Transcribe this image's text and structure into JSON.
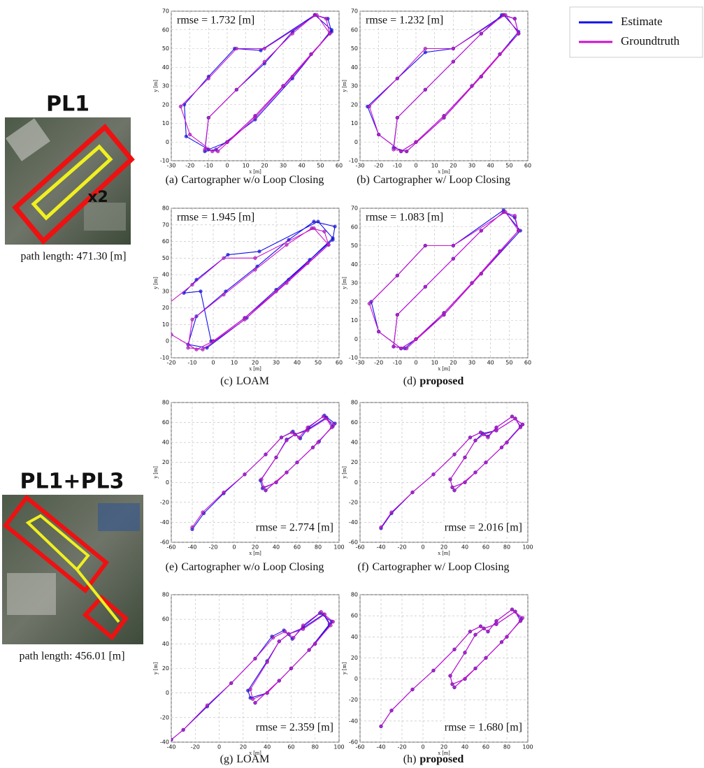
{
  "legend": [
    {
      "name": "Estimate",
      "color": "#1010ee"
    },
    {
      "name": "Groundtruth",
      "color": "#cc11cc"
    }
  ],
  "scenes": [
    {
      "title": "PL1",
      "badge": "x2",
      "note": "path length: 471.30 [m]"
    },
    {
      "title": "PL1+PL3",
      "note": "path length: 456.01 [m]"
    }
  ],
  "chart_data": [
    {
      "type": "line",
      "label": "(a)",
      "caption": "Cartographer w/o Loop Closing",
      "caption_bold": false,
      "annotation": "rmse = 1.732 [m]",
      "annotation_corner": "upper left",
      "xlabel": "x [m]",
      "ylabel": "y [m]",
      "grid": true,
      "xlim": [
        -30,
        60
      ],
      "xticks": [
        -30,
        -20,
        -10,
        0,
        10,
        20,
        30,
        40,
        50,
        60
      ],
      "ylim": [
        -10,
        70
      ],
      "yticks": [
        -10,
        0,
        10,
        20,
        30,
        40,
        50,
        60,
        70
      ],
      "series": [
        {
          "x": [
            0,
            15,
            30,
            45,
            56,
            54,
            47,
            35,
            20,
            5,
            -10,
            -12,
            -6,
            15,
            35,
            56,
            47,
            18,
            4,
            -10,
            -23,
            -22,
            -10,
            0
          ],
          "values": [
            0,
            14,
            30,
            47,
            59,
            66,
            68,
            59,
            42,
            28,
            13,
            -5,
            -4,
            12,
            34,
            60,
            68,
            49,
            50,
            35,
            20,
            3,
            -4,
            0
          ]
        },
        {
          "x": [
            0,
            15,
            30,
            45,
            55,
            53,
            47,
            35,
            20,
            5,
            -10,
            -12,
            -5,
            15,
            35,
            55,
            48,
            20,
            5,
            -10,
            -25,
            -20,
            -8,
            0
          ],
          "values": [
            0,
            14,
            30,
            47,
            58,
            66,
            68,
            58,
            43,
            28,
            13,
            -4,
            -5,
            13,
            35,
            58,
            68,
            50,
            50,
            34,
            19,
            4,
            -5,
            0
          ]
        }
      ]
    },
    {
      "type": "line",
      "label": "(b)",
      "caption": "Cartographer w/ Loop Closing",
      "caption_bold": false,
      "annotation": "rmse = 1.232 [m]",
      "annotation_corner": "upper left",
      "xlabel": "x [m]",
      "ylabel": "y [m]",
      "grid": true,
      "xlim": [
        -30,
        60
      ],
      "xticks": [
        -30,
        -20,
        -10,
        0,
        10,
        20,
        30,
        40,
        50,
        60
      ],
      "ylim": [
        -10,
        70
      ],
      "yticks": [
        -10,
        0,
        10,
        20,
        30,
        40,
        50,
        60,
        70
      ],
      "series": [
        {
          "x": [
            0,
            15,
            30,
            45,
            55,
            53,
            46,
            35,
            20,
            5,
            -10,
            -12,
            -5,
            15,
            35,
            55,
            47,
            20,
            5,
            -10,
            -26,
            -20,
            -8,
            0
          ],
          "values": [
            0,
            14,
            30,
            47,
            58,
            66,
            68,
            58,
            43,
            28,
            13,
            -3,
            -5,
            13,
            35,
            59,
            68,
            50,
            48,
            34,
            19,
            4,
            -5,
            0
          ]
        },
        {
          "x": [
            0,
            15,
            30,
            45,
            55,
            53,
            47,
            35,
            20,
            5,
            -10,
            -12,
            -5,
            15,
            35,
            55,
            48,
            20,
            5,
            -10,
            -25,
            -20,
            -8,
            0
          ],
          "values": [
            0,
            14,
            30,
            47,
            58,
            66,
            68,
            58,
            43,
            28,
            13,
            -4,
            -5,
            13,
            35,
            58,
            68,
            50,
            50,
            34,
            19,
            4,
            -5,
            0
          ]
        }
      ]
    },
    {
      "type": "line",
      "label": "(c)",
      "caption": "LOAM",
      "caption_bold": false,
      "annotation": "rmse = 1.945 [m]",
      "annotation_corner": "upper left",
      "xlabel": "x [m]",
      "ylabel": "y [m]",
      "grid": true,
      "xlim": [
        -20,
        60
      ],
      "xticks": [
        -20,
        -10,
        0,
        10,
        20,
        30,
        40,
        50,
        60
      ],
      "ylim": [
        -10,
        80
      ],
      "yticks": [
        -10,
        0,
        10,
        20,
        30,
        40,
        50,
        60,
        70,
        80
      ],
      "series": [
        {
          "x": [
            0,
            15,
            30,
            46,
            57,
            58,
            48,
            36,
            21,
            6,
            -8,
            -12,
            -3,
            16,
            36,
            57,
            50,
            22,
            7,
            -8,
            -14,
            -6,
            -1,
            0
          ],
          "values": [
            0,
            14,
            31,
            49,
            61,
            69,
            72,
            61,
            45,
            30,
            15,
            -2,
            -4,
            14,
            37,
            62,
            72,
            54,
            52,
            37,
            29,
            30,
            0,
            0
          ]
        },
        {
          "x": [
            0,
            15,
            30,
            45,
            55,
            53,
            47,
            35,
            20,
            5,
            -10,
            -12,
            -5,
            15,
            35,
            55,
            48,
            20,
            5,
            -10,
            -25,
            -20,
            -8,
            0
          ],
          "values": [
            0,
            14,
            30,
            47,
            58,
            66,
            68,
            58,
            43,
            28,
            13,
            -4,
            -5,
            13,
            35,
            58,
            68,
            50,
            50,
            34,
            19,
            4,
            -5,
            0
          ]
        }
      ]
    },
    {
      "type": "line",
      "label": "(d)",
      "caption": "proposed",
      "caption_bold": true,
      "annotation": "rmse = 1.083 [m]",
      "annotation_corner": "upper left",
      "xlabel": "x [m]",
      "ylabel": "y [m]",
      "grid": true,
      "xlim": [
        -30,
        60
      ],
      "xticks": [
        -30,
        -20,
        -10,
        0,
        10,
        20,
        30,
        40,
        50,
        60
      ],
      "ylim": [
        -10,
        70
      ],
      "yticks": [
        -10,
        0,
        10,
        20,
        30,
        40,
        50,
        60,
        70
      ],
      "series": [
        {
          "x": [
            0,
            15,
            30,
            45,
            55,
            53,
            47,
            35,
            20,
            5,
            -10,
            -12,
            -6,
            15,
            35,
            56,
            47,
            20,
            5,
            -10,
            -24,
            -20,
            -8,
            0
          ],
          "values": [
            0,
            14,
            30,
            47,
            58,
            65,
            68,
            58,
            43,
            28,
            13,
            -4,
            -5,
            13,
            35,
            58,
            69,
            50,
            50,
            34,
            20,
            4,
            -5,
            0
          ]
        },
        {
          "x": [
            0,
            15,
            30,
            45,
            55,
            53,
            47,
            35,
            20,
            5,
            -10,
            -12,
            -5,
            15,
            35,
            55,
            48,
            20,
            5,
            -10,
            -25,
            -20,
            -8,
            0
          ],
          "values": [
            0,
            14,
            30,
            47,
            58,
            66,
            68,
            58,
            43,
            28,
            13,
            -4,
            -5,
            13,
            35,
            58,
            68,
            50,
            50,
            34,
            19,
            4,
            -5,
            0
          ]
        }
      ]
    },
    {
      "type": "line",
      "label": "(e)",
      "caption": "Cartographer w/o Loop Closing",
      "caption_bold": false,
      "annotation": "rmse = 2.774 [m]",
      "annotation_corner": "lower right",
      "xlabel": "x [m]",
      "ylabel": "y [m]",
      "grid": true,
      "xlim": [
        -60,
        100
      ],
      "xticks": [
        -60,
        -40,
        -20,
        0,
        20,
        40,
        60,
        80,
        100
      ],
      "ylim": [
        -60,
        80
      ],
      "yticks": [
        -60,
        -40,
        -20,
        0,
        20,
        40,
        60,
        80
      ],
      "series": [
        {
          "x": [
            -40,
            -29,
            -10,
            10,
            30,
            45,
            56,
            63,
            71,
            86,
            96,
            81,
            60,
            40,
            27,
            25,
            40,
            50,
            58,
            70,
            88,
            94,
            75,
            50,
            30
          ],
          "values": [
            -47,
            -31,
            -11,
            8,
            28,
            45,
            51,
            44,
            55,
            67,
            59,
            41,
            20,
            0,
            -6,
            2,
            25,
            43,
            48,
            53,
            65,
            56,
            35,
            10,
            -8
          ]
        },
        {
          "x": [
            -40,
            -30,
            -10,
            10,
            30,
            45,
            55,
            62,
            70,
            85,
            95,
            80,
            60,
            40,
            28,
            26,
            40,
            50,
            58,
            70,
            88,
            93,
            75,
            50,
            30
          ],
          "values": [
            -45,
            -30,
            -10,
            8,
            28,
            45,
            50,
            45,
            55,
            66,
            58,
            40,
            20,
            0,
            -5,
            3,
            25,
            42,
            48,
            52,
            64,
            55,
            35,
            10,
            -8
          ]
        }
      ]
    },
    {
      "type": "line",
      "label": "(f)",
      "caption": "Cartographer w/ Loop Closing",
      "caption_bold": false,
      "annotation": "rmse = 2.016 [m]",
      "annotation_corner": "lower right",
      "xlabel": "x [m]",
      "ylabel": "y [m]",
      "grid": true,
      "xlim": [
        -60,
        100
      ],
      "xticks": [
        -60,
        -40,
        -20,
        0,
        20,
        40,
        60,
        80,
        100
      ],
      "ylim": [
        -60,
        80
      ],
      "yticks": [
        -60,
        -40,
        -20,
        0,
        20,
        40,
        60,
        80
      ],
      "series": [
        {
          "x": [
            -40,
            -30,
            -10,
            10,
            30,
            45,
            55,
            62,
            70,
            85,
            95,
            80,
            60,
            40,
            28,
            26,
            40,
            50,
            57,
            70,
            88,
            93,
            75,
            50,
            30
          ],
          "values": [
            -46,
            -31,
            -10,
            8,
            28,
            45,
            50,
            46,
            55,
            66,
            58,
            40,
            20,
            0,
            -5,
            3,
            25,
            42,
            49,
            52,
            64,
            56,
            35,
            10,
            -8
          ]
        },
        {
          "x": [
            -40,
            -30,
            -10,
            10,
            30,
            45,
            55,
            62,
            70,
            85,
            95,
            80,
            60,
            40,
            28,
            26,
            40,
            50,
            58,
            70,
            88,
            93,
            75,
            50,
            30
          ],
          "values": [
            -45,
            -30,
            -10,
            8,
            28,
            45,
            50,
            45,
            55,
            66,
            58,
            40,
            20,
            0,
            -5,
            3,
            25,
            42,
            48,
            52,
            64,
            55,
            35,
            10,
            -8
          ]
        }
      ]
    },
    {
      "type": "line",
      "label": "(g)",
      "caption": "LOAM",
      "caption_bold": false,
      "annotation": "rmse = 2.359 [m]",
      "annotation_corner": "lower right",
      "xlabel": "x [m]",
      "ylabel": "y [m]",
      "grid": true,
      "xlim": [
        -40,
        100
      ],
      "xticks": [
        -40,
        -20,
        0,
        20,
        40,
        60,
        80,
        100
      ],
      "ylim": [
        -40,
        80
      ],
      "yticks": [
        -40,
        -20,
        0,
        20,
        40,
        60,
        80
      ],
      "series": [
        {
          "x": [
            -40,
            -30,
            -10,
            10,
            30,
            44,
            54,
            61,
            70,
            84,
            94,
            80,
            60,
            40,
            26,
            24,
            40,
            50,
            58,
            70,
            87,
            92,
            75,
            50,
            30
          ],
          "values": [
            -38,
            -30,
            -11,
            8,
            28,
            46,
            51,
            44,
            54,
            65,
            58,
            40,
            20,
            0,
            -4,
            2,
            26,
            42,
            48,
            53,
            64,
            56,
            35,
            10,
            -8
          ]
        },
        {
          "x": [
            -40,
            -30,
            -10,
            10,
            30,
            45,
            55,
            62,
            70,
            85,
            95,
            80,
            60,
            40,
            28,
            26,
            40,
            50,
            58,
            70,
            88,
            93,
            75,
            50,
            30
          ],
          "values": [
            -38,
            -30,
            -10,
            8,
            28,
            45,
            50,
            45,
            55,
            66,
            58,
            40,
            20,
            0,
            -5,
            3,
            25,
            42,
            48,
            52,
            64,
            55,
            35,
            10,
            -8
          ]
        }
      ]
    },
    {
      "type": "line",
      "label": "(h)",
      "caption": "proposed",
      "caption_bold": true,
      "annotation": "rmse = 1.680 [m]",
      "annotation_corner": "lower right",
      "xlabel": "x [m]",
      "ylabel": "y [m]",
      "grid": true,
      "xlim": [
        -60,
        100
      ],
      "xticks": [
        -60,
        -40,
        -20,
        0,
        20,
        40,
        60,
        80,
        100
      ],
      "ylim": [
        -60,
        80
      ],
      "yticks": [
        -60,
        -40,
        -20,
        0,
        20,
        40,
        60,
        80
      ],
      "series": [
        {
          "x": [
            -40,
            -30,
            -10,
            10,
            30,
            45,
            55,
            62,
            70,
            85,
            94,
            80,
            60,
            40,
            28,
            26,
            40,
            50,
            58,
            70,
            88,
            93,
            75,
            50,
            30
          ],
          "values": [
            -45,
            -30,
            -10,
            8,
            28,
            45,
            50,
            45,
            55,
            66,
            57,
            40,
            20,
            0,
            -5,
            3,
            25,
            42,
            48,
            52,
            64,
            55,
            35,
            10,
            -8
          ]
        },
        {
          "x": [
            -40,
            -30,
            -10,
            10,
            30,
            45,
            55,
            62,
            70,
            85,
            95,
            80,
            60,
            40,
            28,
            26,
            40,
            50,
            58,
            70,
            88,
            93,
            75,
            50,
            30
          ],
          "values": [
            -45,
            -30,
            -10,
            8,
            28,
            45,
            50,
            45,
            55,
            66,
            58,
            40,
            20,
            0,
            -5,
            3,
            25,
            42,
            48,
            52,
            64,
            55,
            35,
            10,
            -8
          ]
        }
      ]
    }
  ]
}
